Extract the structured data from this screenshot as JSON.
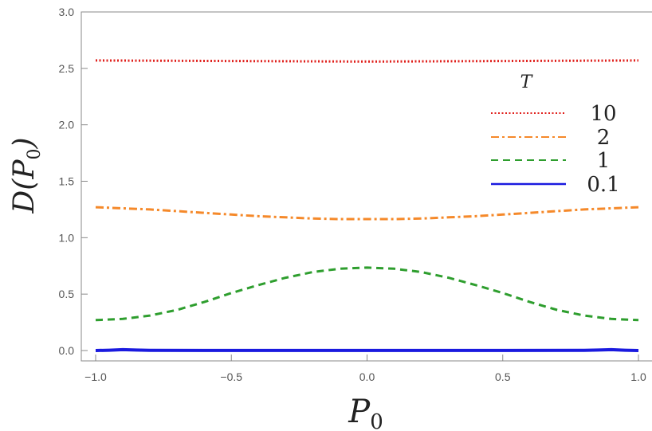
{
  "chart_data": {
    "type": "line",
    "title": "",
    "xlabel": "P",
    "xlabel_sub": "0",
    "ylabel_prefix": "D(",
    "ylabel_var": "P",
    "ylabel_sub": "0",
    "ylabel_suffix": ")",
    "xlim": [
      -1.0,
      1.0
    ],
    "ylim": [
      0.0,
      3.0
    ],
    "xticks": [
      -1.0,
      -0.5,
      0.0,
      0.5,
      1.0
    ],
    "xtick_labels": [
      "−1.0",
      "−0.5",
      "0.0",
      "0.5",
      "1.0"
    ],
    "yticks": [
      0.0,
      0.5,
      1.0,
      1.5,
      2.0,
      2.5,
      3.0
    ],
    "ytick_labels": [
      "0.0",
      "0.5",
      "1.0",
      "1.5",
      "2.0",
      "2.5",
      "3.0"
    ],
    "grid": false,
    "legend_title": "T",
    "legend_position": "right",
    "series": [
      {
        "name": "10",
        "color": "#e0201c",
        "style": "dotted",
        "x": [
          -1.0,
          -0.5,
          0.0,
          0.5,
          1.0
        ],
        "y": [
          2.57,
          2.565,
          2.56,
          2.565,
          2.57
        ]
      },
      {
        "name": "2",
        "color": "#f5892a",
        "style": "dashdot",
        "x": [
          -1.0,
          -0.9,
          -0.8,
          -0.7,
          -0.6,
          -0.5,
          -0.4,
          -0.3,
          -0.2,
          -0.1,
          0.0,
          0.1,
          0.2,
          0.3,
          0.4,
          0.5,
          0.6,
          0.7,
          0.8,
          0.9,
          1.0
        ],
        "y": [
          1.27,
          1.26,
          1.25,
          1.235,
          1.22,
          1.205,
          1.19,
          1.18,
          1.17,
          1.165,
          1.165,
          1.165,
          1.17,
          1.18,
          1.19,
          1.205,
          1.22,
          1.235,
          1.25,
          1.26,
          1.27
        ]
      },
      {
        "name": "1",
        "color": "#2e9e2e",
        "style": "dashed",
        "x": [
          -1.0,
          -0.9,
          -0.8,
          -0.7,
          -0.6,
          -0.5,
          -0.4,
          -0.3,
          -0.2,
          -0.1,
          0.0,
          0.1,
          0.2,
          0.3,
          0.4,
          0.5,
          0.6,
          0.7,
          0.8,
          0.9,
          1.0
        ],
        "y": [
          0.27,
          0.28,
          0.31,
          0.36,
          0.43,
          0.51,
          0.58,
          0.645,
          0.695,
          0.725,
          0.735,
          0.725,
          0.695,
          0.645,
          0.58,
          0.51,
          0.43,
          0.36,
          0.31,
          0.28,
          0.27
        ]
      },
      {
        "name": "0.1",
        "color": "#1a1adf",
        "style": "solid",
        "x": [
          -1.0,
          -0.95,
          -0.9,
          -0.85,
          -0.8,
          -0.5,
          0.0,
          0.5,
          0.8,
          0.85,
          0.9,
          0.95,
          1.0
        ],
        "y": [
          0.0,
          0.003,
          0.008,
          0.004,
          0.002,
          0.001,
          0.001,
          0.001,
          0.002,
          0.004,
          0.008,
          0.003,
          0.0
        ]
      }
    ]
  }
}
